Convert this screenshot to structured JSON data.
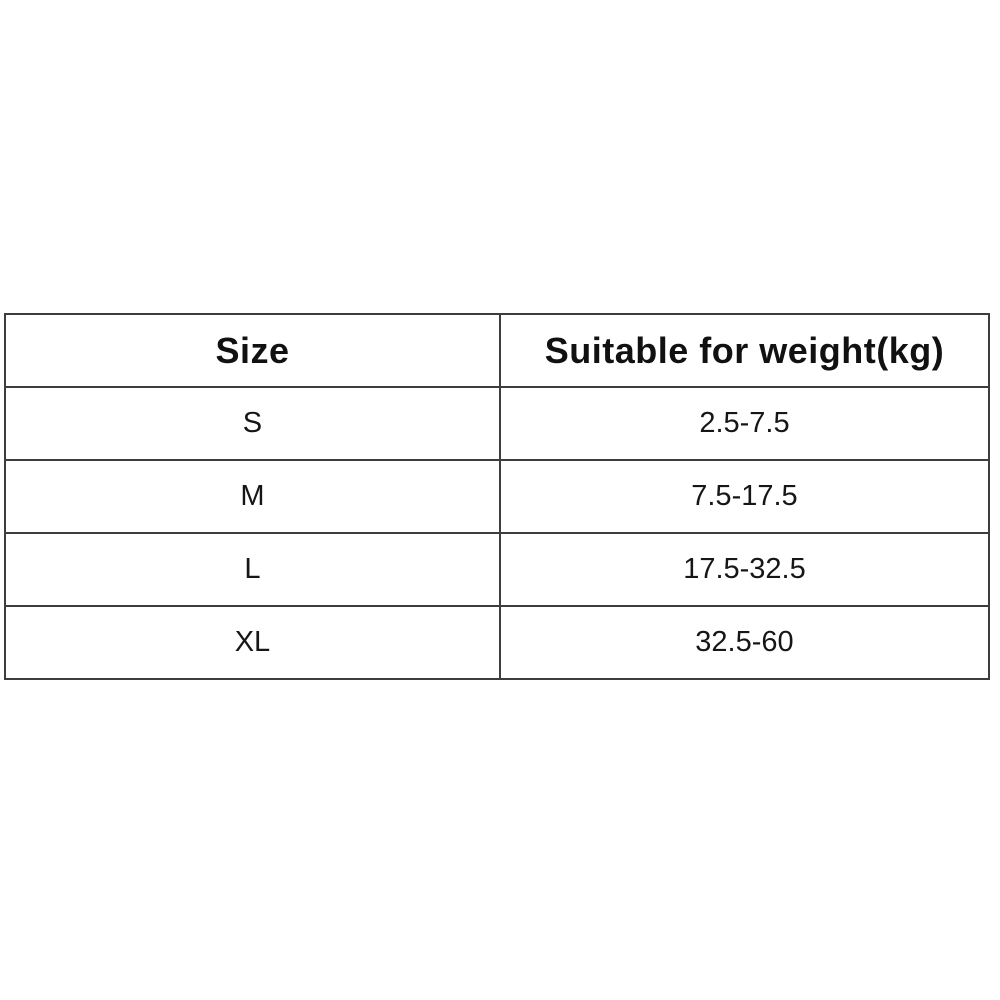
{
  "table": {
    "columns": [
      {
        "label": "Size"
      },
      {
        "label": "Suitable for weight(kg)"
      }
    ],
    "rows": [
      {
        "size": "S",
        "weight": "2.5-7.5"
      },
      {
        "size": "M",
        "weight": "7.5-17.5"
      },
      {
        "size": "L",
        "weight": "17.5-32.5"
      },
      {
        "size": "XL",
        "weight": "32.5-60"
      }
    ]
  }
}
